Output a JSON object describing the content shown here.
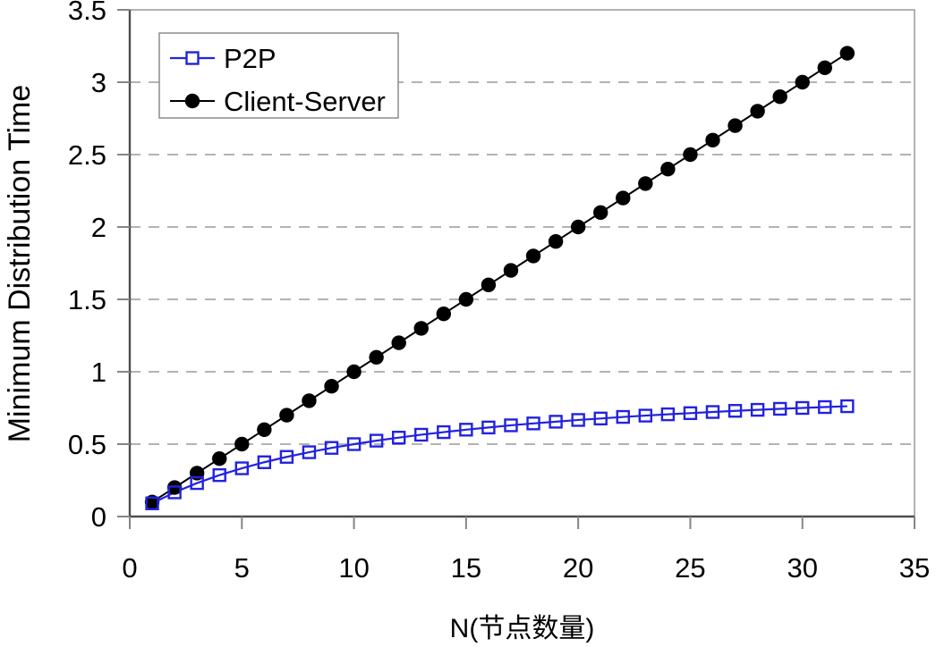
{
  "chart_data": {
    "type": "line",
    "title": "",
    "xlabel": "N(节点数量)",
    "ylabel": "Minimum Distribution Time",
    "xlim": [
      0,
      35
    ],
    "ylim": [
      0,
      3.5
    ],
    "xticks": [
      0,
      5,
      10,
      15,
      20,
      25,
      30,
      35
    ],
    "yticks": [
      0,
      0.5,
      1,
      1.5,
      2,
      2.5,
      3,
      3.5
    ],
    "grid": "horizontal-dashed",
    "legend_position": "top-left",
    "x": [
      1,
      2,
      3,
      4,
      5,
      6,
      7,
      8,
      9,
      10,
      11,
      12,
      13,
      14,
      15,
      16,
      17,
      18,
      19,
      20,
      21,
      22,
      23,
      24,
      25,
      26,
      27,
      28,
      29,
      30,
      31,
      32
    ],
    "series": [
      {
        "name": "P2P",
        "color": "#2222E0",
        "marker": "open-square",
        "values": [
          0.091,
          0.167,
          0.231,
          0.286,
          0.333,
          0.375,
          0.412,
          0.444,
          0.474,
          0.5,
          0.524,
          0.545,
          0.565,
          0.583,
          0.6,
          0.615,
          0.63,
          0.643,
          0.655,
          0.667,
          0.677,
          0.688,
          0.697,
          0.706,
          0.714,
          0.722,
          0.73,
          0.737,
          0.744,
          0.75,
          0.756,
          0.762
        ]
      },
      {
        "name": "Client-Server",
        "color": "#000000",
        "marker": "filled-circle",
        "values": [
          0.1,
          0.2,
          0.3,
          0.4,
          0.5,
          0.6,
          0.7,
          0.8,
          0.9,
          1.0,
          1.1,
          1.2,
          1.3,
          1.4,
          1.5,
          1.6,
          1.7,
          1.8,
          1.9,
          2.0,
          2.1,
          2.2,
          2.3,
          2.4,
          2.5,
          2.6,
          2.7,
          2.8,
          2.9,
          3.0,
          3.1,
          3.2
        ]
      }
    ],
    "colors": {
      "background": "#ffffff",
      "grid": "#b3b3b3",
      "frame": "#999999",
      "axis": "#4d4d4d",
      "tick": "#858585",
      "text": "#000000",
      "legend_border": "#8c8c8c"
    }
  }
}
